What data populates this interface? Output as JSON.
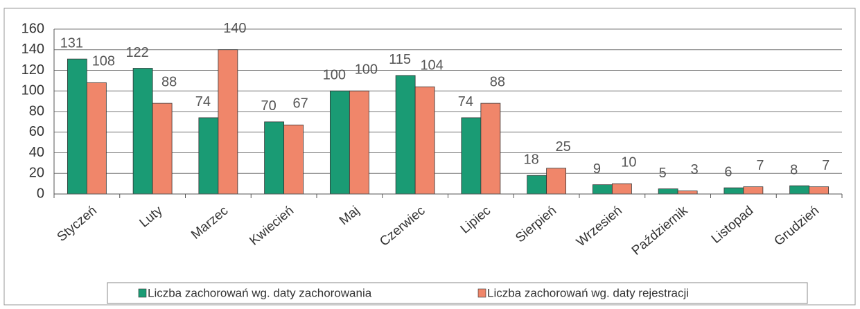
{
  "chart_data": {
    "type": "bar",
    "categories": [
      "Styczeń",
      "Luty",
      "Marzec",
      "Kwiecień",
      "Maj",
      "Czerwiec",
      "Lipiec",
      "Sierpień",
      "Wrzesień",
      "Październik",
      "Listopad",
      "Grudzień"
    ],
    "series": [
      {
        "name": "Liczba zachorowań wg. daty zachorowania",
        "color": "#1a9b74",
        "values": [
          131,
          122,
          74,
          70,
          100,
          115,
          74,
          18,
          9,
          5,
          6,
          8
        ]
      },
      {
        "name": "Liczba zachorowań wg. daty rejestracji",
        "color": "#f0866a",
        "values": [
          108,
          88,
          140,
          67,
          100,
          104,
          88,
          25,
          10,
          3,
          7,
          7
        ]
      }
    ],
    "ylim": [
      0,
      160
    ],
    "yticks": [
      0,
      20,
      40,
      60,
      80,
      100,
      120,
      140,
      160
    ],
    "grid": true,
    "legend": "bottom"
  }
}
